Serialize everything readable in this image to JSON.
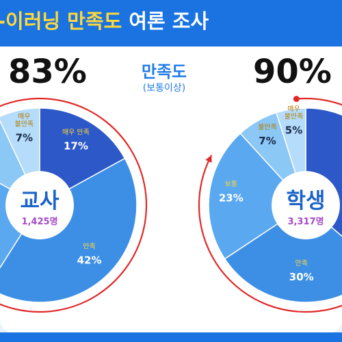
{
  "banner": {
    "title_part_a": "-이러닝 만족도",
    "title_part_b": "여론 조사"
  },
  "legend_center": {
    "title": "만족도",
    "subtitle": "(보통이상)"
  },
  "colors": {
    "banner": "#1a73e0",
    "very_satisfied": "#2d58c8",
    "satisfied": "#3d8fe6",
    "normal": "#5aa8ef",
    "dissatisfied": "#8cc8f6",
    "very_dissatisfied": "#b5dcfa",
    "arrow": "#e02828"
  },
  "chart_data": [
    {
      "type": "pie",
      "group": "교사",
      "respondents": "1,425명",
      "satisfaction": "83%",
      "slices": [
        {
          "label": "매우 만족",
          "value": 17,
          "display": "17%"
        },
        {
          "label": "만족",
          "value": 42,
          "display": "42%"
        },
        {
          "label": "",
          "value": 24,
          "display": ""
        },
        {
          "label": "",
          "value": 10,
          "display": "%"
        },
        {
          "label": "매우 불만족",
          "value": 7,
          "display": "7%"
        }
      ]
    },
    {
      "type": "pie",
      "group": "학생",
      "respondents": "3,317명",
      "satisfaction": "90%",
      "slices": [
        {
          "label": "",
          "value": 37,
          "display": ""
        },
        {
          "label": "만족",
          "value": 30,
          "display": "30%"
        },
        {
          "label": "보통",
          "value": 23,
          "display": "23%"
        },
        {
          "label": "불만족",
          "value": 7,
          "display": "7%"
        },
        {
          "label": "매우 불만족",
          "value": 5,
          "display": "5%"
        }
      ]
    }
  ]
}
